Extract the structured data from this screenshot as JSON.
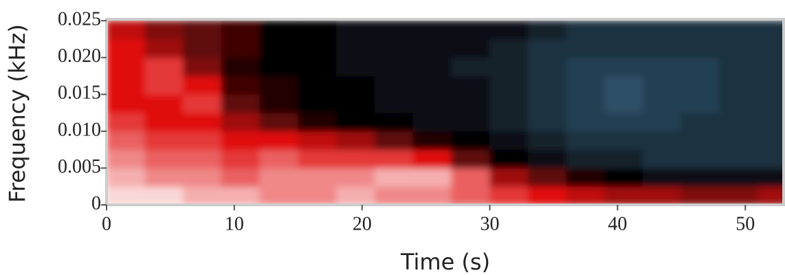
{
  "chart_data": {
    "type": "heatmap",
    "xlabel": "Time (s)",
    "ylabel": "Frequency (kHz)",
    "xlim": [
      0,
      53
    ],
    "ylim": [
      0,
      0.0252
    ],
    "xticks": [
      0,
      10,
      20,
      30,
      40,
      50
    ],
    "yticks": [
      0,
      0.005,
      {
        "value": 0.01,
        "label": "0.010"
      },
      0.015,
      {
        "value": 0.02,
        "label": "0.020"
      },
      0.025
    ],
    "x_bins": [
      0,
      3,
      6,
      9,
      12,
      15,
      18,
      21,
      24,
      27,
      30,
      33,
      36,
      39,
      42,
      45,
      48,
      51,
      54
    ],
    "y_bins": [
      0,
      0.0025,
      0.005,
      0.0075,
      0.01,
      0.0125,
      0.015,
      0.0175,
      0.02,
      0.0225,
      0.025
    ],
    "colormap": [
      {
        "value": 0,
        "color": "#3f6f92"
      },
      {
        "value": 0.35,
        "color": "#000000"
      },
      {
        "value": 0.7,
        "color": "#e01010"
      },
      {
        "value": 1,
        "color": "#ffffff"
      }
    ],
    "values": [
      [
        0.95,
        0.95,
        0.9,
        0.9,
        0.85,
        0.85,
        0.9,
        0.85,
        0.85,
        0.8,
        0.75,
        0.7,
        0.65,
        0.6,
        0.6,
        0.55,
        0.55,
        0.6
      ],
      [
        0.9,
        0.85,
        0.85,
        0.8,
        0.85,
        0.85,
        0.85,
        0.9,
        0.9,
        0.8,
        0.6,
        0.5,
        0.4,
        0.35,
        0.3,
        0.3,
        0.3,
        0.3
      ],
      [
        0.85,
        0.8,
        0.8,
        0.75,
        0.8,
        0.75,
        0.75,
        0.75,
        0.7,
        0.5,
        0.35,
        0.3,
        0.25,
        0.25,
        0.2,
        0.2,
        0.2,
        0.2
      ],
      [
        0.8,
        0.75,
        0.75,
        0.7,
        0.7,
        0.65,
        0.6,
        0.5,
        0.4,
        0.35,
        0.3,
        0.25,
        0.2,
        0.2,
        0.2,
        0.2,
        0.2,
        0.2
      ],
      [
        0.75,
        0.7,
        0.7,
        0.6,
        0.5,
        0.4,
        0.35,
        0.35,
        0.3,
        0.3,
        0.25,
        0.2,
        0.15,
        0.15,
        0.15,
        0.2,
        0.2,
        0.2
      ],
      [
        0.7,
        0.7,
        0.75,
        0.5,
        0.4,
        0.35,
        0.35,
        0.3,
        0.3,
        0.3,
        0.25,
        0.2,
        0.15,
        0.1,
        0.15,
        0.15,
        0.2,
        0.2
      ],
      [
        0.7,
        0.75,
        0.7,
        0.45,
        0.4,
        0.35,
        0.35,
        0.3,
        0.3,
        0.3,
        0.25,
        0.2,
        0.15,
        0.1,
        0.15,
        0.15,
        0.2,
        0.2
      ],
      [
        0.7,
        0.75,
        0.55,
        0.4,
        0.35,
        0.35,
        0.3,
        0.3,
        0.3,
        0.25,
        0.25,
        0.2,
        0.15,
        0.15,
        0.15,
        0.15,
        0.2,
        0.2
      ],
      [
        0.7,
        0.6,
        0.5,
        0.45,
        0.35,
        0.35,
        0.3,
        0.3,
        0.3,
        0.3,
        0.25,
        0.2,
        0.2,
        0.2,
        0.2,
        0.2,
        0.2,
        0.2
      ],
      [
        0.65,
        0.55,
        0.5,
        0.45,
        0.35,
        0.35,
        0.3,
        0.3,
        0.3,
        0.3,
        0.3,
        0.25,
        0.2,
        0.2,
        0.2,
        0.2,
        0.2,
        0.2
      ]
    ]
  }
}
